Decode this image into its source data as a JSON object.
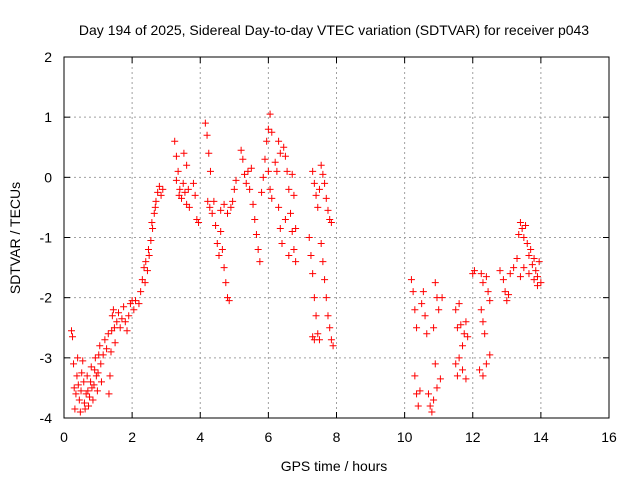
{
  "chart_data": {
    "type": "scatter",
    "title": "Day 194 of 2025, Sidereal Day-to-day VTEC variation (SDTVAR) for receiver p043",
    "xlabel": "GPS time / hours",
    "ylabel": "SDTVAR / TECUs",
    "xlim": [
      0,
      16
    ],
    "ylim": [
      -4,
      2
    ],
    "xticks": [
      0,
      2,
      4,
      6,
      8,
      10,
      12,
      14,
      16
    ],
    "yticks": [
      -4,
      -3,
      -2,
      -1,
      0,
      1,
      2
    ],
    "xtick_labels": [
      "0",
      "2",
      "4",
      "6",
      "8",
      "10",
      "12",
      "14",
      "16"
    ],
    "ytick_labels": [
      "-4",
      "-3",
      "-2",
      "-1",
      "0",
      "1",
      "2"
    ],
    "grid": true,
    "marker": "+",
    "series": [
      {
        "name": "SDTVAR",
        "color": "#ff0000",
        "points": [
          [
            0.22,
            -2.55
          ],
          [
            0.25,
            -2.65
          ],
          [
            0.28,
            -3.1
          ],
          [
            0.3,
            -3.5
          ],
          [
            0.32,
            -3.85
          ],
          [
            0.35,
            -3.6
          ],
          [
            0.38,
            -3.3
          ],
          [
            0.4,
            -3.0
          ],
          [
            0.42,
            -3.45
          ],
          [
            0.45,
            -3.7
          ],
          [
            0.48,
            -3.9
          ],
          [
            0.5,
            -3.55
          ],
          [
            0.52,
            -3.25
          ],
          [
            0.55,
            -3.05
          ],
          [
            0.58,
            -3.4
          ],
          [
            0.6,
            -3.75
          ],
          [
            0.62,
            -3.85
          ],
          [
            0.65,
            -3.6
          ],
          [
            0.68,
            -3.3
          ],
          [
            0.7,
            -3.55
          ],
          [
            0.72,
            -3.8
          ],
          [
            0.75,
            -3.65
          ],
          [
            0.78,
            -3.4
          ],
          [
            0.8,
            -3.15
          ],
          [
            0.82,
            -3.5
          ],
          [
            0.85,
            -3.7
          ],
          [
            0.88,
            -3.45
          ],
          [
            0.9,
            -3.2
          ],
          [
            0.92,
            -3.0
          ],
          [
            0.95,
            -3.3
          ],
          [
            0.98,
            -3.55
          ],
          [
            1.0,
            -3.25
          ],
          [
            1.02,
            -2.95
          ],
          [
            1.05,
            -2.8
          ],
          [
            1.08,
            -3.1
          ],
          [
            1.1,
            -3.4
          ],
          [
            1.15,
            -2.95
          ],
          [
            1.2,
            -2.7
          ],
          [
            1.25,
            -2.85
          ],
          [
            1.3,
            -2.6
          ],
          [
            1.32,
            -3.6
          ],
          [
            1.35,
            -3.3
          ],
          [
            1.38,
            -2.9
          ],
          [
            1.4,
            -2.55
          ],
          [
            1.42,
            -2.3
          ],
          [
            1.45,
            -2.2
          ],
          [
            1.48,
            -2.5
          ],
          [
            1.5,
            -2.75
          ],
          [
            1.55,
            -2.4
          ],
          [
            1.6,
            -2.25
          ],
          [
            1.65,
            -2.5
          ],
          [
            1.7,
            -2.35
          ],
          [
            1.75,
            -2.15
          ],
          [
            1.8,
            -2.4
          ],
          [
            1.85,
            -2.55
          ],
          [
            1.9,
            -2.3
          ],
          [
            1.95,
            -2.1
          ],
          [
            2.0,
            -2.05
          ],
          [
            2.05,
            -2.2
          ],
          [
            2.1,
            -2.05
          ],
          [
            2.2,
            -2.1
          ],
          [
            2.25,
            -1.9
          ],
          [
            2.3,
            -1.7
          ],
          [
            2.35,
            -1.5
          ],
          [
            2.4,
            -1.4
          ],
          [
            2.45,
            -1.55
          ],
          [
            2.5,
            -1.3
          ],
          [
            2.55,
            -1.05
          ],
          [
            2.6,
            -0.85
          ],
          [
            2.65,
            -0.6
          ],
          [
            2.7,
            -0.4
          ],
          [
            2.75,
            -0.25
          ],
          [
            2.8,
            -0.15
          ],
          [
            2.85,
            -0.3
          ],
          [
            2.9,
            -0.2
          ],
          [
            2.38,
            -1.75
          ],
          [
            2.48,
            -1.2
          ],
          [
            2.58,
            -0.75
          ],
          [
            2.68,
            -0.5
          ],
          [
            3.25,
            0.6
          ],
          [
            3.3,
            0.35
          ],
          [
            3.35,
            0.1
          ],
          [
            3.4,
            -0.2
          ],
          [
            3.45,
            -0.35
          ],
          [
            3.5,
            -0.1
          ],
          [
            3.55,
            -0.25
          ],
          [
            3.6,
            -0.45
          ],
          [
            3.65,
            -0.2
          ],
          [
            3.3,
            -0.05
          ],
          [
            3.38,
            -0.3
          ],
          [
            3.52,
            0.4
          ],
          [
            3.6,
            0.2
          ],
          [
            3.68,
            -0.5
          ],
          [
            3.8,
            -0.1
          ],
          [
            3.85,
            -0.3
          ],
          [
            3.9,
            -0.7
          ],
          [
            3.95,
            -0.75
          ],
          [
            4.15,
            0.9
          ],
          [
            4.2,
            0.7
          ],
          [
            4.25,
            0.4
          ],
          [
            4.3,
            0.1
          ],
          [
            4.22,
            -0.4
          ],
          [
            4.28,
            -0.5
          ],
          [
            4.35,
            -0.6
          ],
          [
            4.4,
            -0.4
          ],
          [
            4.45,
            -0.8
          ],
          [
            4.5,
            -1.1
          ],
          [
            4.55,
            -1.3
          ],
          [
            4.6,
            -0.9
          ],
          [
            4.65,
            -1.2
          ],
          [
            4.7,
            -1.5
          ],
          [
            4.75,
            -1.75
          ],
          [
            4.8,
            -2.0
          ],
          [
            4.85,
            -2.05
          ],
          [
            4.9,
            -0.5
          ],
          [
            4.95,
            -0.4
          ],
          [
            5.0,
            -0.2
          ],
          [
            5.05,
            -0.05
          ],
          [
            4.6,
            -0.55
          ],
          [
            4.7,
            -0.45
          ],
          [
            4.8,
            -0.6
          ],
          [
            5.2,
            0.45
          ],
          [
            5.25,
            0.3
          ],
          [
            5.3,
            0.05
          ],
          [
            5.35,
            -0.1
          ],
          [
            5.4,
            0.1
          ],
          [
            5.45,
            -0.2
          ],
          [
            5.5,
            0.15
          ],
          [
            5.55,
            -0.45
          ],
          [
            5.6,
            -0.7
          ],
          [
            5.65,
            -0.95
          ],
          [
            5.7,
            -1.2
          ],
          [
            5.75,
            -1.4
          ],
          [
            5.8,
            -0.25
          ],
          [
            5.85,
            0.0
          ],
          [
            5.9,
            0.3
          ],
          [
            5.95,
            0.6
          ],
          [
            6.0,
            0.8
          ],
          [
            6.05,
            1.05
          ],
          [
            6.1,
            0.75
          ],
          [
            6.0,
            0.1
          ],
          [
            6.05,
            -0.2
          ],
          [
            6.1,
            -0.35
          ],
          [
            6.2,
            0.25
          ],
          [
            6.25,
            0.1
          ],
          [
            6.3,
            -0.5
          ],
          [
            6.35,
            -0.85
          ],
          [
            6.4,
            -1.1
          ],
          [
            6.45,
            0.5
          ],
          [
            6.5,
            0.35
          ],
          [
            6.55,
            0.1
          ],
          [
            6.6,
            -0.2
          ],
          [
            6.65,
            -0.6
          ],
          [
            6.7,
            -0.9
          ],
          [
            6.75,
            -1.2
          ],
          [
            6.8,
            -1.4
          ],
          [
            6.3,
            0.6
          ],
          [
            6.35,
            0.4
          ],
          [
            6.5,
            -0.7
          ],
          [
            6.6,
            -1.3
          ],
          [
            6.7,
            0.05
          ],
          [
            6.75,
            -0.3
          ],
          [
            6.8,
            -0.85
          ],
          [
            7.2,
            -1.0
          ],
          [
            7.25,
            -1.3
          ],
          [
            7.3,
            -1.6
          ],
          [
            7.35,
            -2.0
          ],
          [
            7.4,
            -2.3
          ],
          [
            7.45,
            -2.6
          ],
          [
            7.5,
            -2.7
          ],
          [
            7.3,
            0.1
          ],
          [
            7.35,
            -0.1
          ],
          [
            7.4,
            -0.3
          ],
          [
            7.45,
            -0.5
          ],
          [
            7.5,
            -0.2
          ],
          [
            7.55,
            0.2
          ],
          [
            7.6,
            0.05
          ],
          [
            7.65,
            -0.1
          ],
          [
            7.7,
            -0.35
          ],
          [
            7.75,
            -0.55
          ],
          [
            7.8,
            -0.7
          ],
          [
            7.85,
            -0.75
          ],
          [
            7.55,
            -1.1
          ],
          [
            7.6,
            -1.4
          ],
          [
            7.65,
            -1.7
          ],
          [
            7.7,
            -2.0
          ],
          [
            7.75,
            -2.3
          ],
          [
            7.8,
            -2.5
          ],
          [
            7.85,
            -2.7
          ],
          [
            7.9,
            -2.8
          ],
          [
            7.3,
            -2.65
          ],
          [
            7.35,
            -2.7
          ],
          [
            10.2,
            -1.7
          ],
          [
            10.25,
            -1.9
          ],
          [
            10.3,
            -2.2
          ],
          [
            10.35,
            -2.5
          ],
          [
            10.3,
            -3.3
          ],
          [
            10.35,
            -3.6
          ],
          [
            10.4,
            -3.8
          ],
          [
            10.45,
            -3.55
          ],
          [
            10.5,
            -2.1
          ],
          [
            10.55,
            -1.9
          ],
          [
            10.6,
            -2.3
          ],
          [
            10.65,
            -2.6
          ],
          [
            10.7,
            -3.6
          ],
          [
            10.75,
            -3.8
          ],
          [
            10.8,
            -3.9
          ],
          [
            10.85,
            -3.7
          ],
          [
            10.9,
            -1.75
          ],
          [
            10.95,
            -2.0
          ],
          [
            11.0,
            -2.2
          ],
          [
            10.85,
            -2.5
          ],
          [
            10.9,
            -3.1
          ],
          [
            10.95,
            -3.5
          ],
          [
            11.05,
            -3.35
          ],
          [
            11.1,
            -2.0
          ],
          [
            11.5,
            -2.2
          ],
          [
            11.55,
            -2.5
          ],
          [
            11.6,
            -2.1
          ],
          [
            11.65,
            -2.45
          ],
          [
            11.7,
            -2.8
          ],
          [
            11.75,
            -2.6
          ],
          [
            11.8,
            -2.4
          ],
          [
            11.85,
            -2.65
          ],
          [
            11.5,
            -3.1
          ],
          [
            11.55,
            -3.3
          ],
          [
            11.6,
            -3.0
          ],
          [
            11.7,
            -3.2
          ],
          [
            11.8,
            -3.35
          ],
          [
            12.0,
            -1.6
          ],
          [
            12.05,
            -1.55
          ],
          [
            12.25,
            -1.6
          ],
          [
            12.3,
            -1.75
          ],
          [
            12.4,
            -1.65
          ],
          [
            12.45,
            -1.9
          ],
          [
            12.5,
            -2.05
          ],
          [
            12.25,
            -2.2
          ],
          [
            12.3,
            -2.4
          ],
          [
            12.35,
            -2.6
          ],
          [
            12.2,
            -3.2
          ],
          [
            12.3,
            -3.3
          ],
          [
            12.4,
            -3.1
          ],
          [
            12.5,
            -2.95
          ],
          [
            12.8,
            -1.55
          ],
          [
            12.9,
            -1.7
          ],
          [
            12.95,
            -1.9
          ],
          [
            13.0,
            -2.05
          ],
          [
            13.05,
            -1.95
          ],
          [
            13.1,
            -1.6
          ],
          [
            13.2,
            -1.5
          ],
          [
            13.3,
            -1.35
          ],
          [
            13.35,
            -0.95
          ],
          [
            13.4,
            -0.75
          ],
          [
            13.45,
            -0.85
          ],
          [
            13.5,
            -1.0
          ],
          [
            13.55,
            -0.8
          ],
          [
            13.6,
            -1.1
          ],
          [
            13.65,
            -1.3
          ],
          [
            13.7,
            -1.2
          ],
          [
            13.75,
            -1.45
          ],
          [
            13.8,
            -1.7
          ],
          [
            13.85,
            -1.55
          ],
          [
            13.9,
            -1.65
          ],
          [
            13.95,
            -1.4
          ],
          [
            14.0,
            -1.75
          ],
          [
            13.4,
            -1.65
          ],
          [
            13.5,
            -1.5
          ],
          [
            13.65,
            -1.6
          ],
          [
            13.8,
            -1.35
          ],
          [
            13.9,
            -1.8
          ]
        ]
      }
    ]
  }
}
